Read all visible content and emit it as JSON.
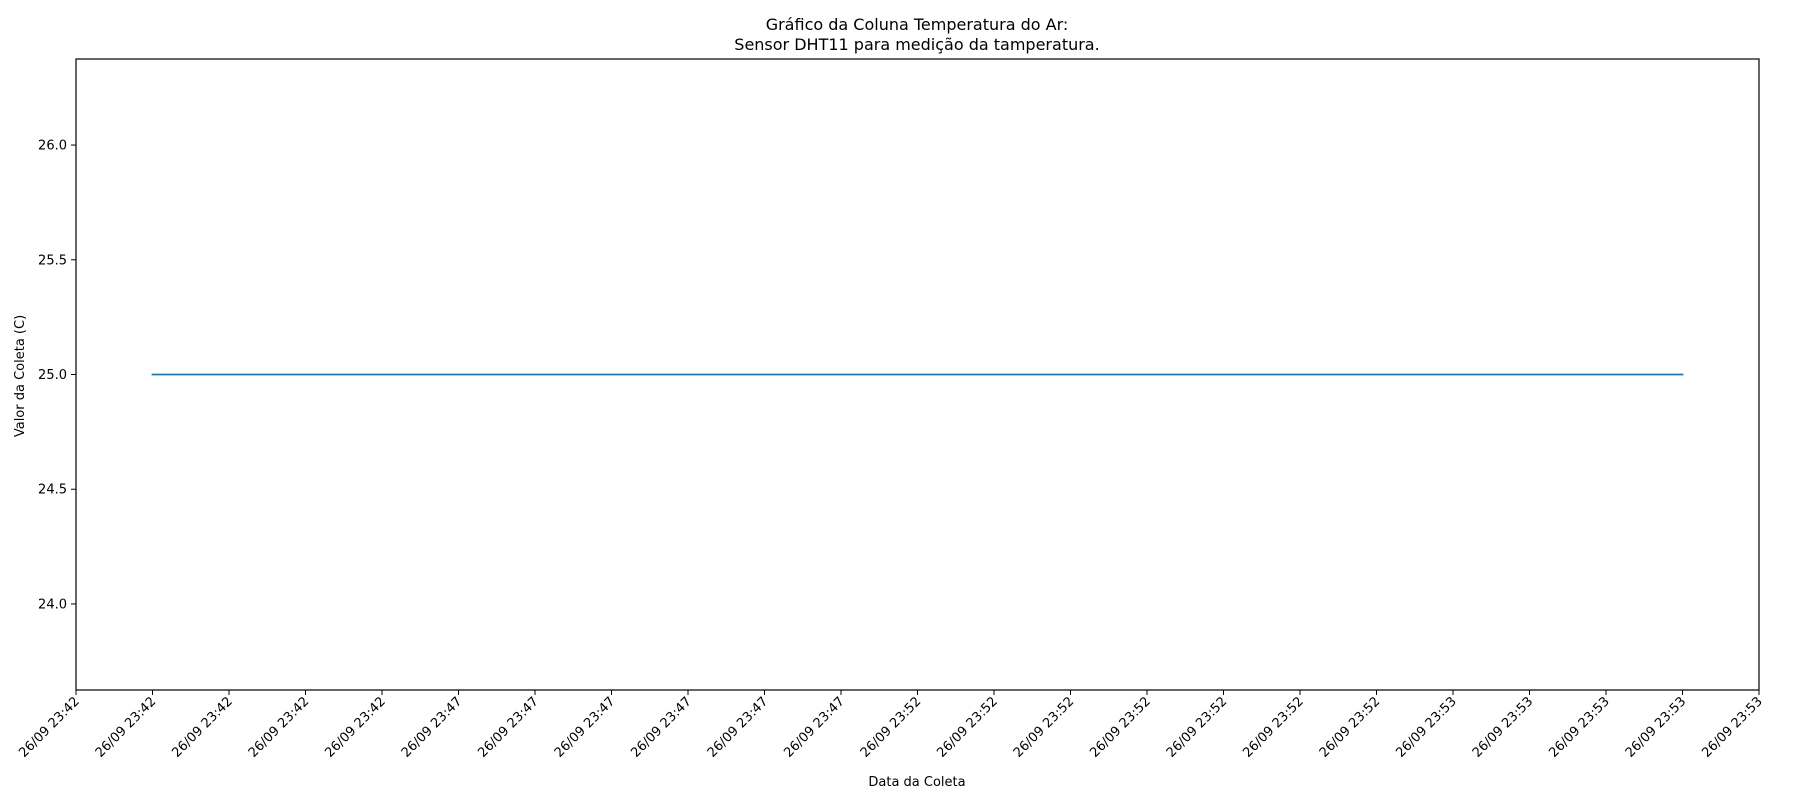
{
  "chart_data": {
    "type": "line",
    "title_line1": "Gráfico da Coluna Temperatura do Ar:",
    "title_line2": "Sensor DHT11 para medição da tamperatura.",
    "xlabel": "Data da Coleta",
    "ylabel": "Valor da Coleta (C)",
    "xtick_labels": [
      "26/09 23:42",
      "26/09 23:42",
      "26/09 23:42",
      "26/09 23:42",
      "26/09 23:42",
      "26/09 23:47",
      "26/09 23:47",
      "26/09 23:47",
      "26/09 23:47",
      "26/09 23:47",
      "26/09 23:47",
      "26/09 23:52",
      "26/09 23:52",
      "26/09 23:52",
      "26/09 23:52",
      "26/09 23:52",
      "26/09 23:52",
      "26/09 23:52",
      "26/09 23:53",
      "26/09 23:53",
      "26/09 23:53",
      "26/09 23:53",
      "26/09 23:53"
    ],
    "yticks": [
      24.0,
      24.5,
      25.0,
      25.5,
      26.0
    ],
    "ytick_labels": [
      "24.0",
      "24.5",
      "25.0",
      "25.5",
      "26.0"
    ],
    "ylim": [
      23.625,
      26.375
    ],
    "series": [
      {
        "color": "#1f77b4",
        "x_start_tick": 1,
        "x_end_tick": 21,
        "values": [
          25.0,
          25.0
        ]
      }
    ],
    "grid": false,
    "legend": "none"
  }
}
